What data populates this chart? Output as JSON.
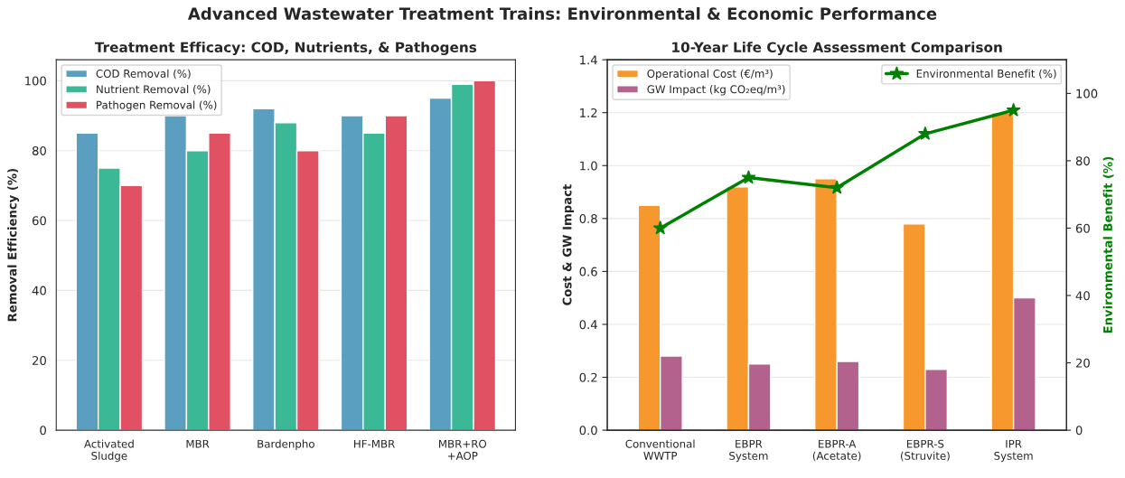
{
  "chart_data": [
    {
      "type": "bar",
      "title": "Treatment Efficacy: COD, Nutrients, & Pathogens",
      "ylabel": "Removal Efficiency (%)",
      "annotations": [
        "Advanced Wastewater Treatment Trains: Environmental & Economic Performance"
      ],
      "categories": [
        "Activated\nSludge",
        "MBR",
        "Bardenpho",
        "HF-MBR",
        "MBR+RO\n+AOP"
      ],
      "series": [
        {
          "name": "COD Removal (%)",
          "color": "#5a9fc0",
          "values": [
            85,
            90,
            92,
            90,
            95
          ]
        },
        {
          "name": "Nutrient Removal (%)",
          "color": "#3bb896",
          "values": [
            75,
            80,
            88,
            85,
            99
          ]
        },
        {
          "name": "Pathogen Removal (%)",
          "color": "#e05263",
          "values": [
            70,
            85,
            80,
            90,
            100
          ]
        }
      ],
      "ylim": [
        0,
        106
      ],
      "yticks": [
        0,
        20,
        40,
        60,
        80,
        100
      ],
      "grid": "y",
      "legend": "top left"
    },
    {
      "type": "bar",
      "title": "10-Year Life Cycle Assessment Comparison",
      "ylabel": "Cost & GW Impact",
      "y2label": "Environmental Benefit (%)",
      "categories": [
        "Conventional\nWWTP",
        "EBPR\nSystem",
        "EBPR-A\n(Acetate)",
        "EBPR-S\n(Struvite)",
        "IPR\nSystem"
      ],
      "series": [
        {
          "name": "Operational Cost (€/m³)",
          "color": "#f7982f",
          "values": [
            0.85,
            0.92,
            0.95,
            0.78,
            1.2
          ]
        },
        {
          "name": "GW Impact (kg CO₂eq/m³)",
          "color": "#b3628e",
          "values": [
            0.28,
            0.25,
            0.26,
            0.23,
            0.5
          ]
        },
        {
          "name": "Environmental Benefit (%)",
          "type": "line",
          "axis": "y2",
          "color": "#008000",
          "marker": "star",
          "line_style": "solid",
          "values": [
            60,
            75,
            72,
            88,
            95
          ]
        }
      ],
      "ylim": [
        0,
        1.4
      ],
      "yticks": [
        {
          "value": 0,
          "label": "0.0"
        },
        0.2,
        0.4,
        0.6,
        0.8,
        {
          "value": 1,
          "label": "1.0"
        },
        1.2,
        1.4
      ],
      "y2lim": [
        0,
        110
      ],
      "y2ticks": [
        0,
        20,
        40,
        60,
        80,
        100
      ],
      "grid": "y",
      "legend": "top left"
    }
  ]
}
